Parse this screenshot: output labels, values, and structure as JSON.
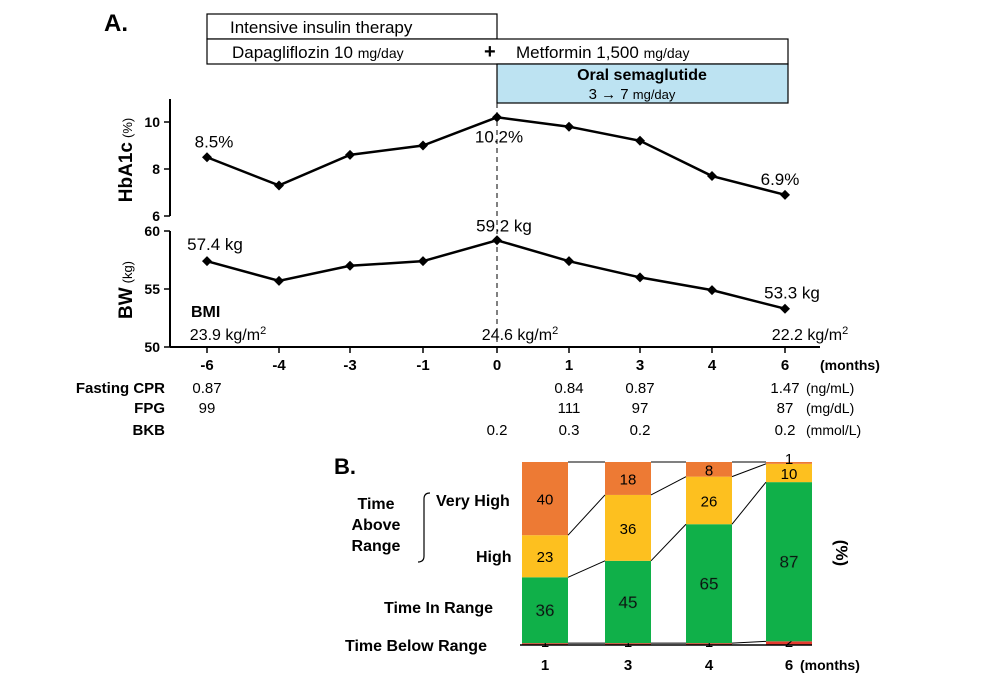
{
  "panel_a": {
    "label": "A.",
    "therapy": {
      "intensive": "Intensive insulin therapy",
      "dapa": "Dapagliflozin 10 ",
      "dapa_unit": "mg/day",
      "plus": "+",
      "met": "Metformin 1,500 ",
      "met_unit": "mg/day",
      "sema_title": "Oral semaglutide",
      "sema_dose": "3  →  7 ",
      "sema_unit": "mg/day"
    },
    "xaxis_unit": "(months)",
    "bmi": {
      "label": "BMI",
      "unit": "kg/m",
      "unit_sup": "2",
      "values": [
        {
          "x": "-6",
          "value": "23.9"
        },
        {
          "x": "0",
          "value": "24.6"
        },
        {
          "x": "6",
          "value": "22.2"
        }
      ]
    },
    "lab_table": {
      "rows": [
        {
          "label": "Fasting CPR",
          "unit": "(ng/mL)",
          "values": [
            "0.87",
            "",
            "",
            "",
            "",
            "0.84",
            "0.87",
            "",
            "1.47"
          ]
        },
        {
          "label": "FPG",
          "unit": "(mg/dL)",
          "values": [
            "99",
            "",
            "",
            "",
            "",
            "111",
            "97",
            "",
            "87"
          ]
        },
        {
          "label": "BKB",
          "unit": "(mmol/L)",
          "values": [
            "",
            "",
            "",
            "",
            "0.2",
            "0.3",
            "0.2",
            "",
            "0.2"
          ]
        }
      ]
    }
  },
  "panel_b": {
    "label": "B.",
    "group_label": [
      "Time",
      "Above",
      "Range"
    ],
    "row_labels": {
      "very_high": "Very High",
      "high": "High",
      "in_range": "Time In Range",
      "below": "Time Below Range"
    },
    "percent_label": "(%)",
    "xaxis_unit": "(months)"
  },
  "chart_data": [
    {
      "type": "line",
      "ylabel": "HbA1c",
      "ylabel_unit": "(%)",
      "x": [
        "-6",
        "-4",
        "-3",
        "-1",
        "0",
        "1",
        "3",
        "4",
        "6"
      ],
      "ylim": [
        6,
        10
      ],
      "yticks": [
        "6",
        "8",
        "10"
      ],
      "values": [
        8.5,
        7.3,
        8.6,
        9.0,
        10.2,
        9.8,
        9.2,
        7.7,
        6.9
      ],
      "annotations": [
        {
          "x": "-6",
          "text": "8.5%"
        },
        {
          "x": "0",
          "text": "10.2%"
        },
        {
          "x": "6",
          "text": "6.9%"
        }
      ]
    },
    {
      "type": "line",
      "ylabel": "BW",
      "ylabel_unit": "(kg)",
      "x": [
        "-6",
        "-4",
        "-3",
        "-1",
        "0",
        "1",
        "3",
        "4",
        "6"
      ],
      "ylim": [
        50,
        60
      ],
      "yticks": [
        "50",
        "55",
        "60"
      ],
      "values": [
        57.4,
        55.7,
        57.0,
        57.4,
        59.2,
        57.4,
        56.0,
        54.9,
        53.3
      ],
      "annotations": [
        {
          "x": "-6",
          "text": "57.4 kg"
        },
        {
          "x": "0",
          "text": "59.2 kg"
        },
        {
          "x": "6",
          "text": "53.3 kg"
        }
      ]
    },
    {
      "type": "bar",
      "stacked": true,
      "categories": [
        "1",
        "3",
        "4",
        "6"
      ],
      "series": [
        {
          "name": "Time Below Range",
          "color": "#e53a2f",
          "values": [
            1,
            1,
            1,
            2
          ]
        },
        {
          "name": "Time In Range",
          "color": "#10b049",
          "values": [
            36,
            45,
            65,
            87
          ]
        },
        {
          "name": "High",
          "color": "#fdc01f",
          "values": [
            23,
            36,
            26,
            10
          ]
        },
        {
          "name": "Very High",
          "color": "#ed7a34",
          "values": [
            40,
            18,
            8,
            1
          ]
        }
      ]
    }
  ]
}
